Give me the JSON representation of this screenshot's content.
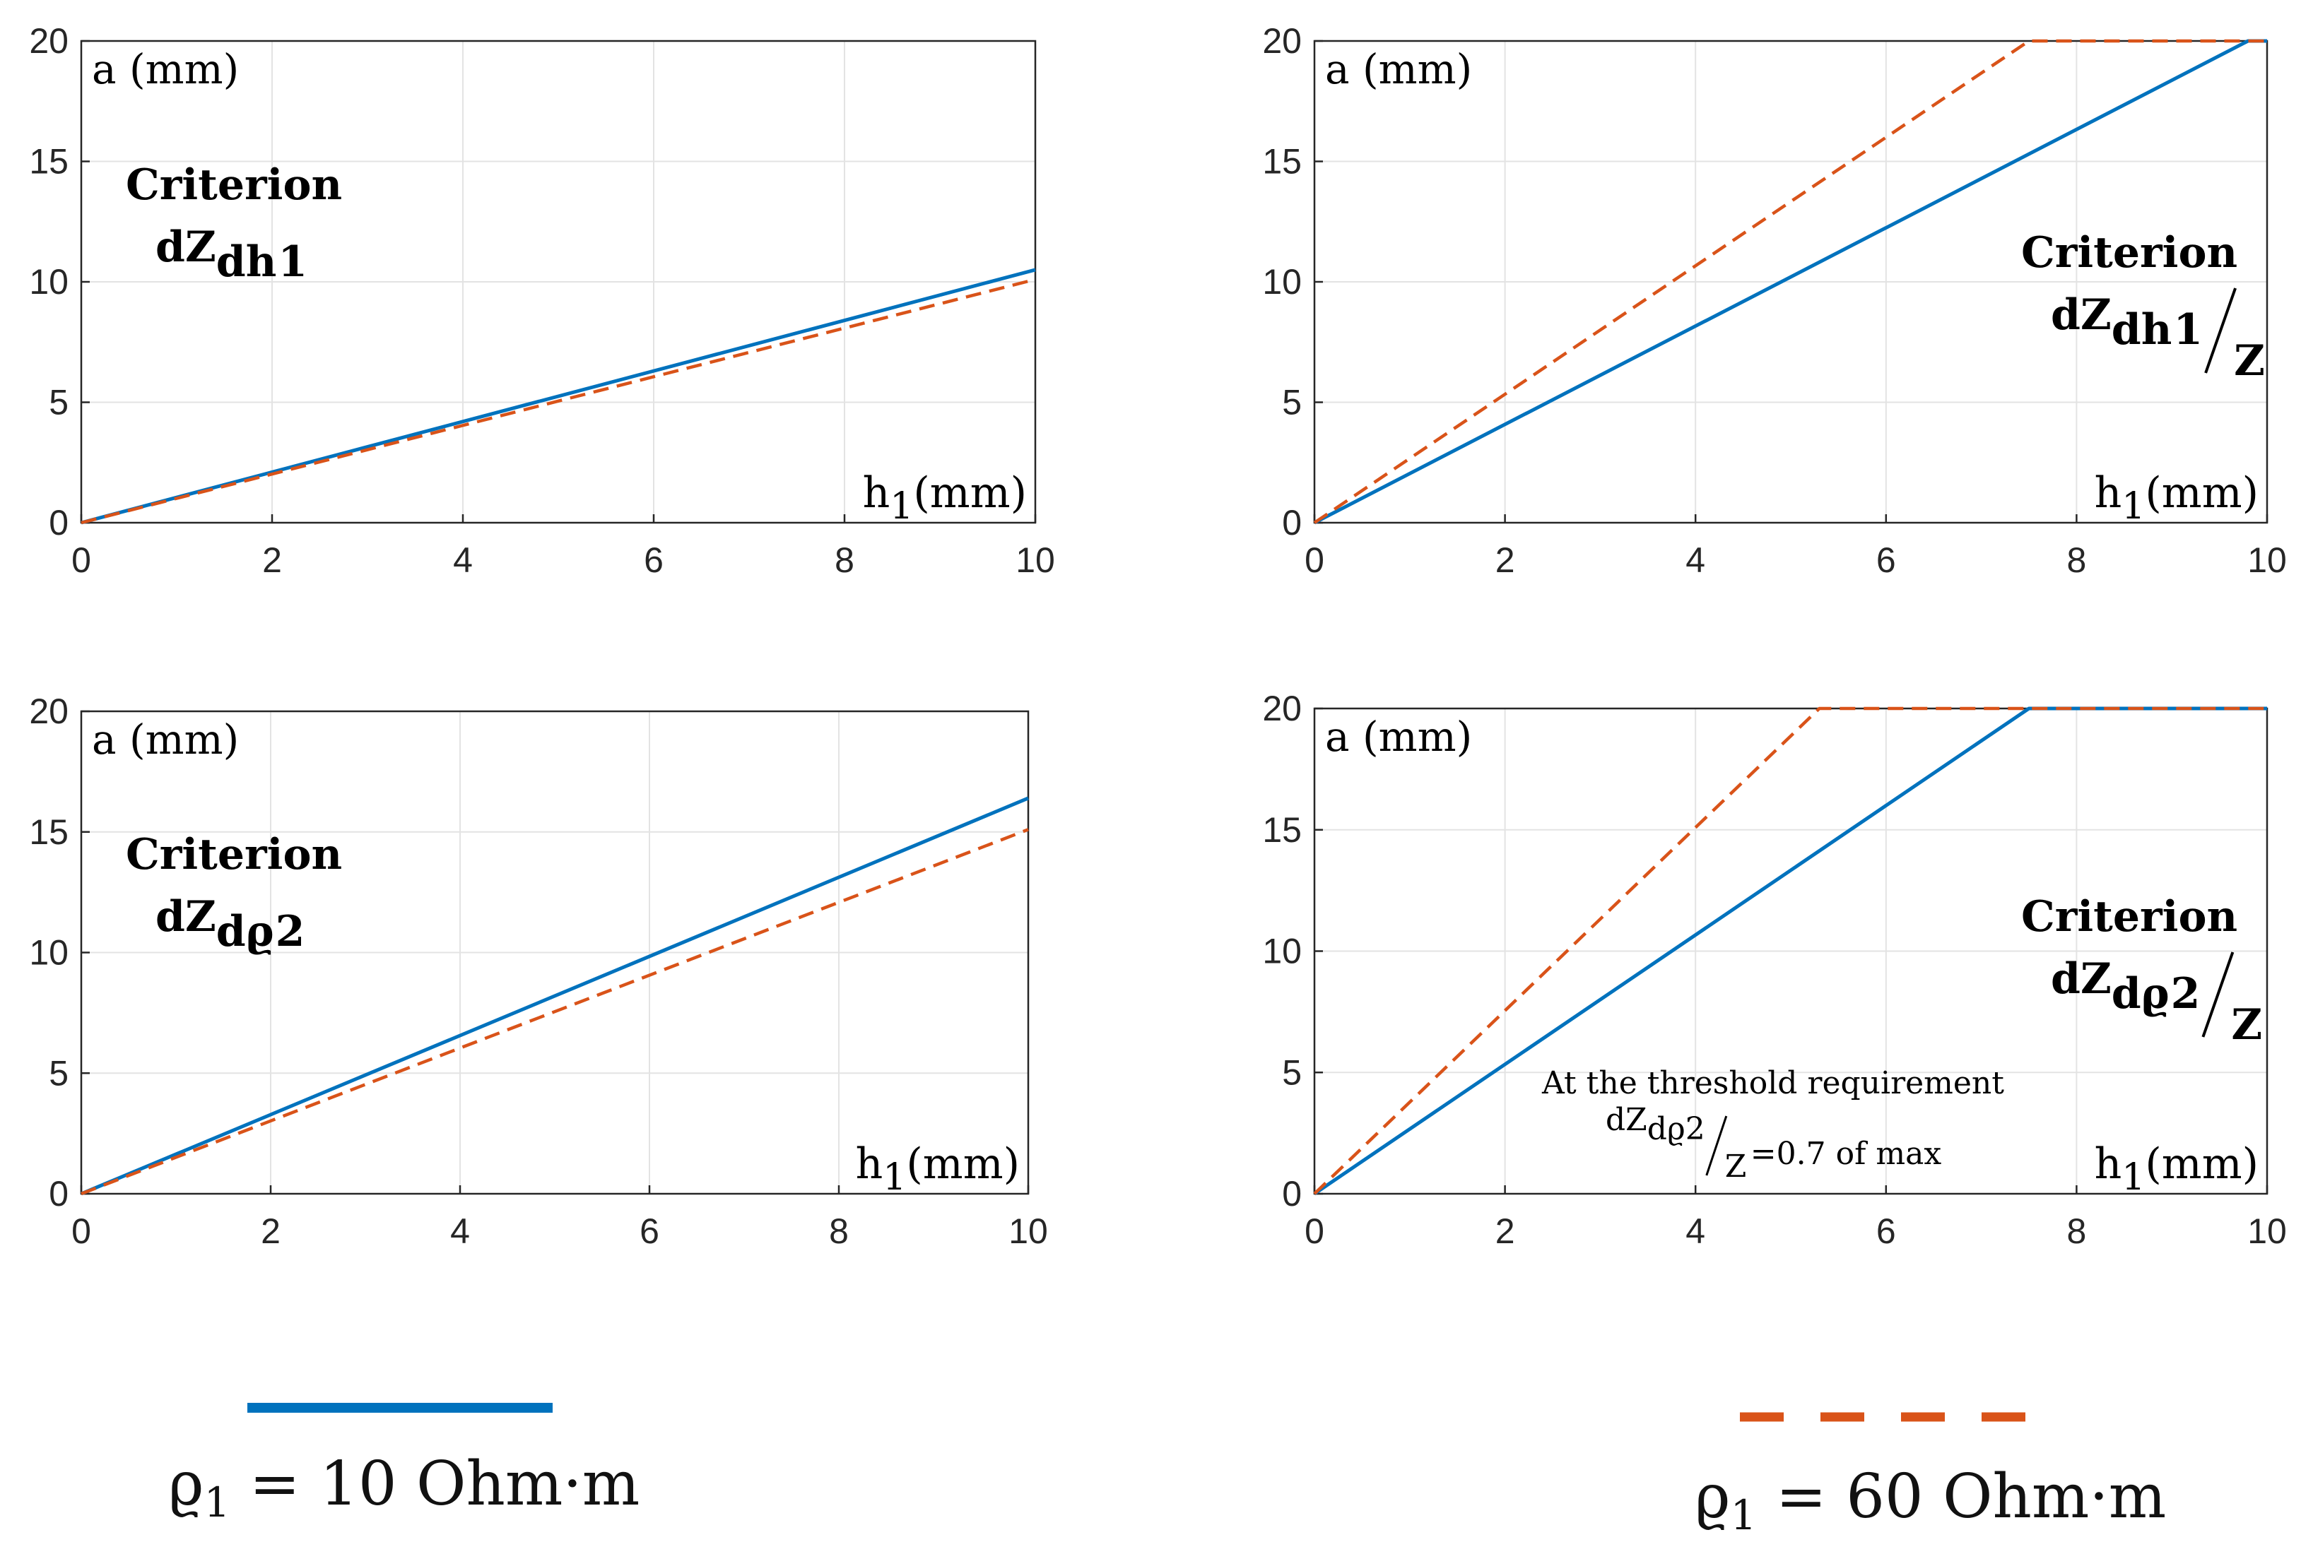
{
  "colors": {
    "rho10": "#0072BD",
    "rho60": "#D95319",
    "grid": "#e3e3e3",
    "axis": "#262626"
  },
  "chart_data": [
    {
      "type": "line",
      "title": "Criterion dZdh1",
      "xlabel": "h1(mm)",
      "ylabel": "a (mm)",
      "xlim": [
        0,
        10
      ],
      "ylim": [
        0,
        20
      ],
      "xticks": [
        "0",
        "2",
        "4",
        "6",
        "8",
        "10"
      ],
      "yticks": [
        "0",
        "5",
        "10",
        "15",
        "20"
      ],
      "grid": true,
      "criterion": {
        "word": "Criterion",
        "dz": "dZ",
        "sub": "dh",
        "subsub": "1",
        "over": ""
      },
      "series": [
        {
          "name": "ϱ1 = 10 Ohm·m",
          "style": "solid",
          "x": [
            0,
            10
          ],
          "y": [
            0,
            10.5
          ]
        },
        {
          "name": "ϱ1 = 60 Ohm·m",
          "style": "dashed",
          "x": [
            0,
            10
          ],
          "y": [
            0,
            10.1
          ]
        }
      ]
    },
    {
      "type": "line",
      "title": "Criterion dZdh1/Z",
      "xlabel": "h1(mm)",
      "ylabel": "a (mm)",
      "xlim": [
        0,
        10
      ],
      "ylim": [
        0,
        20
      ],
      "xticks": [
        "0",
        "2",
        "4",
        "6",
        "8",
        "10"
      ],
      "yticks": [
        "0",
        "5",
        "10",
        "15",
        "20"
      ],
      "grid": true,
      "criterion": {
        "word": "Criterion",
        "dz": "dZ",
        "sub": "dh",
        "subsub": "1",
        "over": "Z"
      },
      "series": [
        {
          "name": "ϱ1 = 10 Ohm·m",
          "style": "solid",
          "x": [
            0,
            9.8,
            10
          ],
          "y": [
            0,
            20,
            20
          ]
        },
        {
          "name": "ϱ1 = 60 Ohm·m",
          "style": "dashed",
          "x": [
            0,
            7.5,
            10
          ],
          "y": [
            0,
            20,
            20
          ]
        }
      ]
    },
    {
      "type": "line",
      "title": "Criterion dZdϱ2",
      "xlabel": "h1(mm)",
      "ylabel": "a (mm)",
      "xlim": [
        0,
        10
      ],
      "ylim": [
        0,
        20
      ],
      "xticks": [
        "0",
        "2",
        "4",
        "6",
        "8",
        "10"
      ],
      "yticks": [
        "0",
        "5",
        "10",
        "15",
        "20"
      ],
      "grid": true,
      "criterion": {
        "word": "Criterion",
        "dz": "dZ",
        "sub": "dϱ",
        "subsub": "2",
        "over": ""
      },
      "series": [
        {
          "name": "ϱ1 = 10 Ohm·m",
          "style": "solid",
          "x": [
            0,
            10
          ],
          "y": [
            0,
            16.4
          ]
        },
        {
          "name": "ϱ1 = 60 Ohm·m",
          "style": "dashed",
          "x": [
            0,
            10
          ],
          "y": [
            0,
            15.1
          ]
        }
      ]
    },
    {
      "type": "line",
      "title": "Criterion dZdϱ2/Z",
      "xlabel": "h1(mm)",
      "ylabel": "a (mm)",
      "xlim": [
        0,
        10
      ],
      "ylim": [
        0,
        20
      ],
      "xticks": [
        "0",
        "2",
        "4",
        "6",
        "8",
        "10"
      ],
      "yticks": [
        "0",
        "5",
        "10",
        "15",
        "20"
      ],
      "grid": true,
      "criterion": {
        "word": "Criterion",
        "dz": "dZ",
        "sub": "dϱ",
        "subsub": "2",
        "over": "Z"
      },
      "note": {
        "line1": "At the threshold requirement",
        "dz": "dZ",
        "sub": "dϱ",
        "subsub": "2",
        "over": "Z",
        "tail": "=0.7 of max"
      },
      "series": [
        {
          "name": "ϱ1 = 10 Ohm·m",
          "style": "solid",
          "x": [
            0,
            7.5,
            10
          ],
          "y": [
            0,
            20,
            20
          ]
        },
        {
          "name": "ϱ1 = 60 Ohm·m",
          "style": "dashed",
          "x": [
            0,
            5.3,
            10
          ],
          "y": [
            0,
            20,
            20
          ]
        }
      ]
    }
  ],
  "legend": [
    {
      "symbol": "ϱ",
      "sub": "1",
      "text": " = 10 Ohm·m",
      "style": "solid"
    },
    {
      "symbol": "ϱ",
      "sub": "1",
      "text": " = 60 Ohm·m",
      "style": "dashed"
    }
  ]
}
